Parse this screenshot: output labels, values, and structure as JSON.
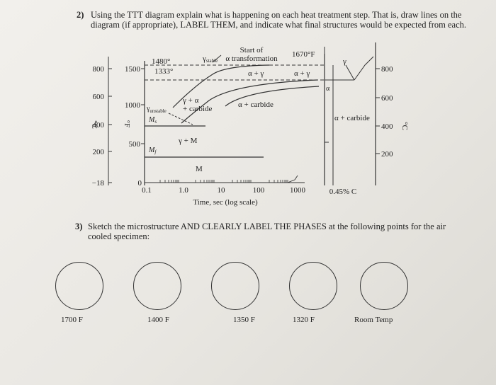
{
  "q2": {
    "number": "2)",
    "line1": "Using the TTT diagram explain what is happening on each heat treatment step. That is, draw lines on the",
    "line2": "diagram (if appropriate), LABEL THEM, and indicate what final structures would be expected from each."
  },
  "q3": {
    "number": "3)",
    "line1": "Sketch the microstructure AND CLEARLY LABEL THE PHASES at the following points for the air",
    "line2": "cooled specimen:"
  },
  "diagram": {
    "start_label1": "Start of",
    "start_label2": "α transformation",
    "t1670": "1670°F",
    "t1480": "1480°",
    "t1333": "1333°",
    "gamma_stable": "γ",
    "gamma_stable_sub": "stable",
    "gamma_unstable": "γ",
    "gamma_unstable_sub": "unstable",
    "ms": "M",
    "ms_sub": "s",
    "mf": "M",
    "mf_sub": "f",
    "gamma_alpha_carbide1": "γ + α",
    "gamma_alpha_carbide2": "+ carbide",
    "alpha_carbide": "α + carbide",
    "alpha_gamma": "α + γ",
    "alpha_gamma_right": "α + γ",
    "gamma_m": "γ + M",
    "m": "M",
    "gamma_right": "γ",
    "alpha_right": "α",
    "alpha_carbide_right": "α + carbide",
    "composition": "0.45% C",
    "time_label": "Time, sec (log scale)",
    "unit_c_left": "°C",
    "unit_f": "°F",
    "unit_c_right": "°C",
    "c_ticks": [
      "800",
      "600",
      "400",
      "200",
      "−18"
    ],
    "f_ticks": [
      "1500",
      "1000",
      "500",
      "0"
    ],
    "time_ticks": [
      "0.1",
      "1.0",
      "10",
      "100",
      "1000"
    ],
    "right_c_ticks": [
      "800",
      "600",
      "400",
      "200"
    ]
  },
  "points": [
    "1700 F",
    "1400 F",
    "1350 F",
    "1320 F",
    "Room Temp"
  ]
}
